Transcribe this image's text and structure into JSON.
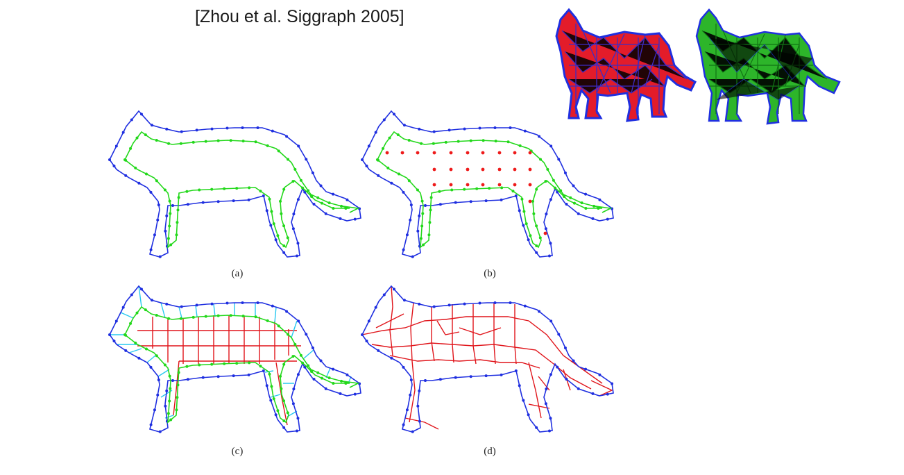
{
  "citation": "[Zhou et al. Siggraph 2005]",
  "captions": {
    "a": "(a)",
    "b": "(b)",
    "c": "(c)",
    "d": "(d)"
  },
  "colors": {
    "outer_boundary": "#1f2fe0",
    "inner_offset": "#22d81a",
    "interior_points": "#ee1a1a",
    "connectors": "#27c8f0",
    "mesh_red": "#e0141a",
    "mesh_green": "#1fa51f"
  },
  "icons": [
    "cat-3d-red-blue-mesh",
    "cat-3d-green-mesh"
  ]
}
